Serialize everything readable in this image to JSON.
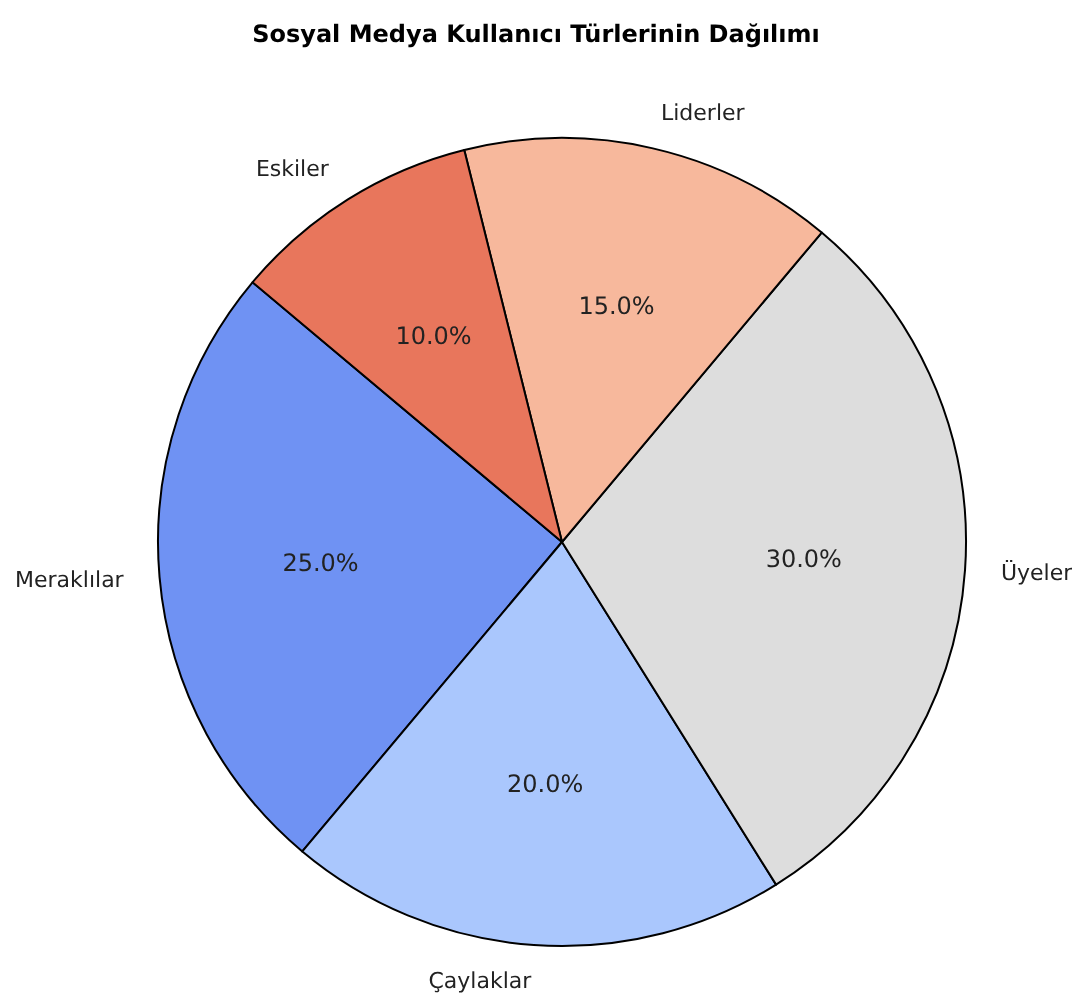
{
  "chart_data": {
    "type": "pie",
    "title": "Sosyal Medya Kullanıcı Türlerinin Dağılımı",
    "categories": [
      "Meraklılar",
      "Çaylaklar",
      "Üyeler",
      "Liderler",
      "Eskiler"
    ],
    "values": [
      25,
      20,
      30,
      15,
      10
    ],
    "value_labels": [
      "25.0%",
      "20.0%",
      "30.0%",
      "15.0%",
      "10.0%"
    ],
    "colors": [
      "#6f92f3",
      "#aac7fd",
      "#dddddd",
      "#f7b89c",
      "#e8765c"
    ],
    "legend": false
  }
}
